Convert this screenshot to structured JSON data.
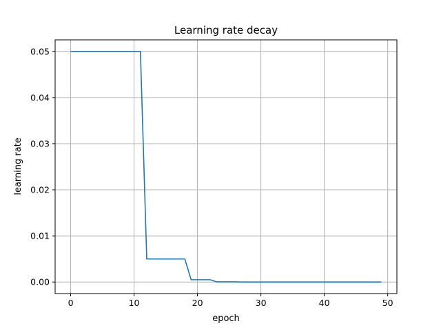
{
  "chart_data": {
    "type": "line",
    "title": "Learning rate decay",
    "xlabel": "epoch",
    "ylabel": "learning rate",
    "xlim": [
      -2.45,
      51.45
    ],
    "ylim": [
      -0.0025,
      0.0525
    ],
    "xticks": [
      0,
      10,
      20,
      30,
      40,
      50
    ],
    "xtick_labels": [
      "0",
      "10",
      "20",
      "30",
      "40",
      "50"
    ],
    "yticks": [
      0.0,
      0.01,
      0.02,
      0.03,
      0.04,
      0.05
    ],
    "ytick_labels": [
      "0.00",
      "0.01",
      "0.02",
      "0.03",
      "0.04",
      "0.05"
    ],
    "grid": true,
    "series": [
      {
        "color": "#1f77b4",
        "x": [
          0,
          1,
          2,
          3,
          4,
          5,
          6,
          7,
          8,
          9,
          10,
          11,
          12,
          13,
          14,
          15,
          16,
          17,
          18,
          19,
          20,
          21,
          22,
          23,
          24,
          25,
          26,
          27,
          28,
          29,
          30,
          31,
          32,
          33,
          34,
          35,
          36,
          37,
          38,
          39,
          40,
          41,
          42,
          43,
          44,
          45,
          46,
          47,
          48,
          49
        ],
        "y": [
          0.05,
          0.05,
          0.05,
          0.05,
          0.05,
          0.05,
          0.05,
          0.05,
          0.05,
          0.05,
          0.05,
          0.05,
          0.005,
          0.005,
          0.005,
          0.005,
          0.005,
          0.005,
          0.005,
          0.0005,
          0.0005,
          0.0005,
          0.0005,
          5e-05,
          5e-05,
          5e-05,
          5e-05,
          5e-06,
          5e-06,
          5e-06,
          5e-06,
          5e-06,
          5e-06,
          5e-06,
          5e-06,
          5e-06,
          5e-06,
          5e-06,
          5e-06,
          5e-06,
          5e-06,
          5e-06,
          5e-06,
          5e-06,
          5e-06,
          5e-06,
          5e-06,
          5e-06,
          5e-06,
          5e-06
        ]
      }
    ]
  }
}
